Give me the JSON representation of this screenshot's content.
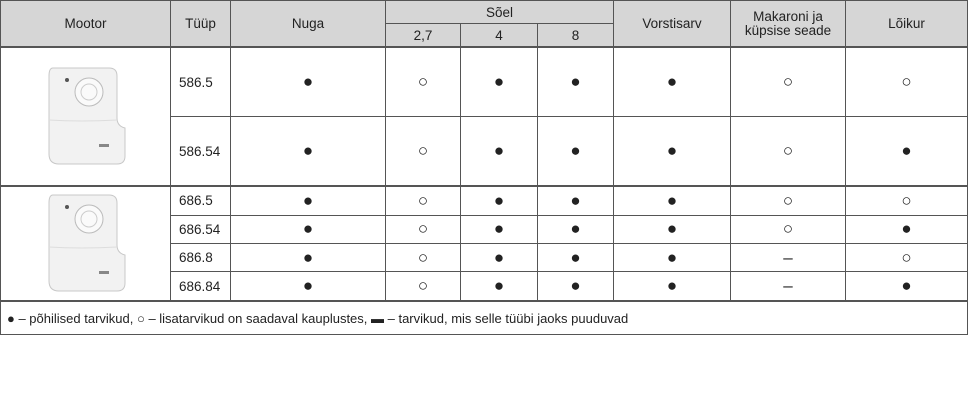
{
  "table": {
    "headers": {
      "motor": "Mootor",
      "type": "Tüüp",
      "knife": "Nuga",
      "sieve": "Sõel",
      "sieve_sizes": [
        "2,7",
        "4",
        "8"
      ],
      "sausage": "Vorstisarv",
      "pasta": "Makaroni ja küpsise seade",
      "cutter": "Lõikur"
    },
    "groups": [
      {
        "rows": [
          [
            "586.5",
            "●",
            "○",
            "●",
            "●",
            "●",
            "○",
            "○"
          ],
          [
            "586.54",
            "●",
            "○",
            "●",
            "●",
            "●",
            "○",
            "●"
          ]
        ]
      },
      {
        "rows": [
          [
            "686.5",
            "●",
            "○",
            "●",
            "●",
            "●",
            "○",
            "○"
          ],
          [
            "686.54",
            "●",
            "○",
            "●",
            "●",
            "●",
            "○",
            "●"
          ],
          [
            "686.8",
            "●",
            "○",
            "●",
            "●",
            "●",
            "–",
            "○"
          ],
          [
            "686.84",
            "●",
            "○",
            "●",
            "●",
            "●",
            "–",
            "●"
          ]
        ]
      }
    ],
    "legend": "● – põhilised tarvikud, ○ – lisatarvikud on saadaval kauplustes, ▬ – tarvikud, mis selle tüübi jaoks puuduvad"
  }
}
